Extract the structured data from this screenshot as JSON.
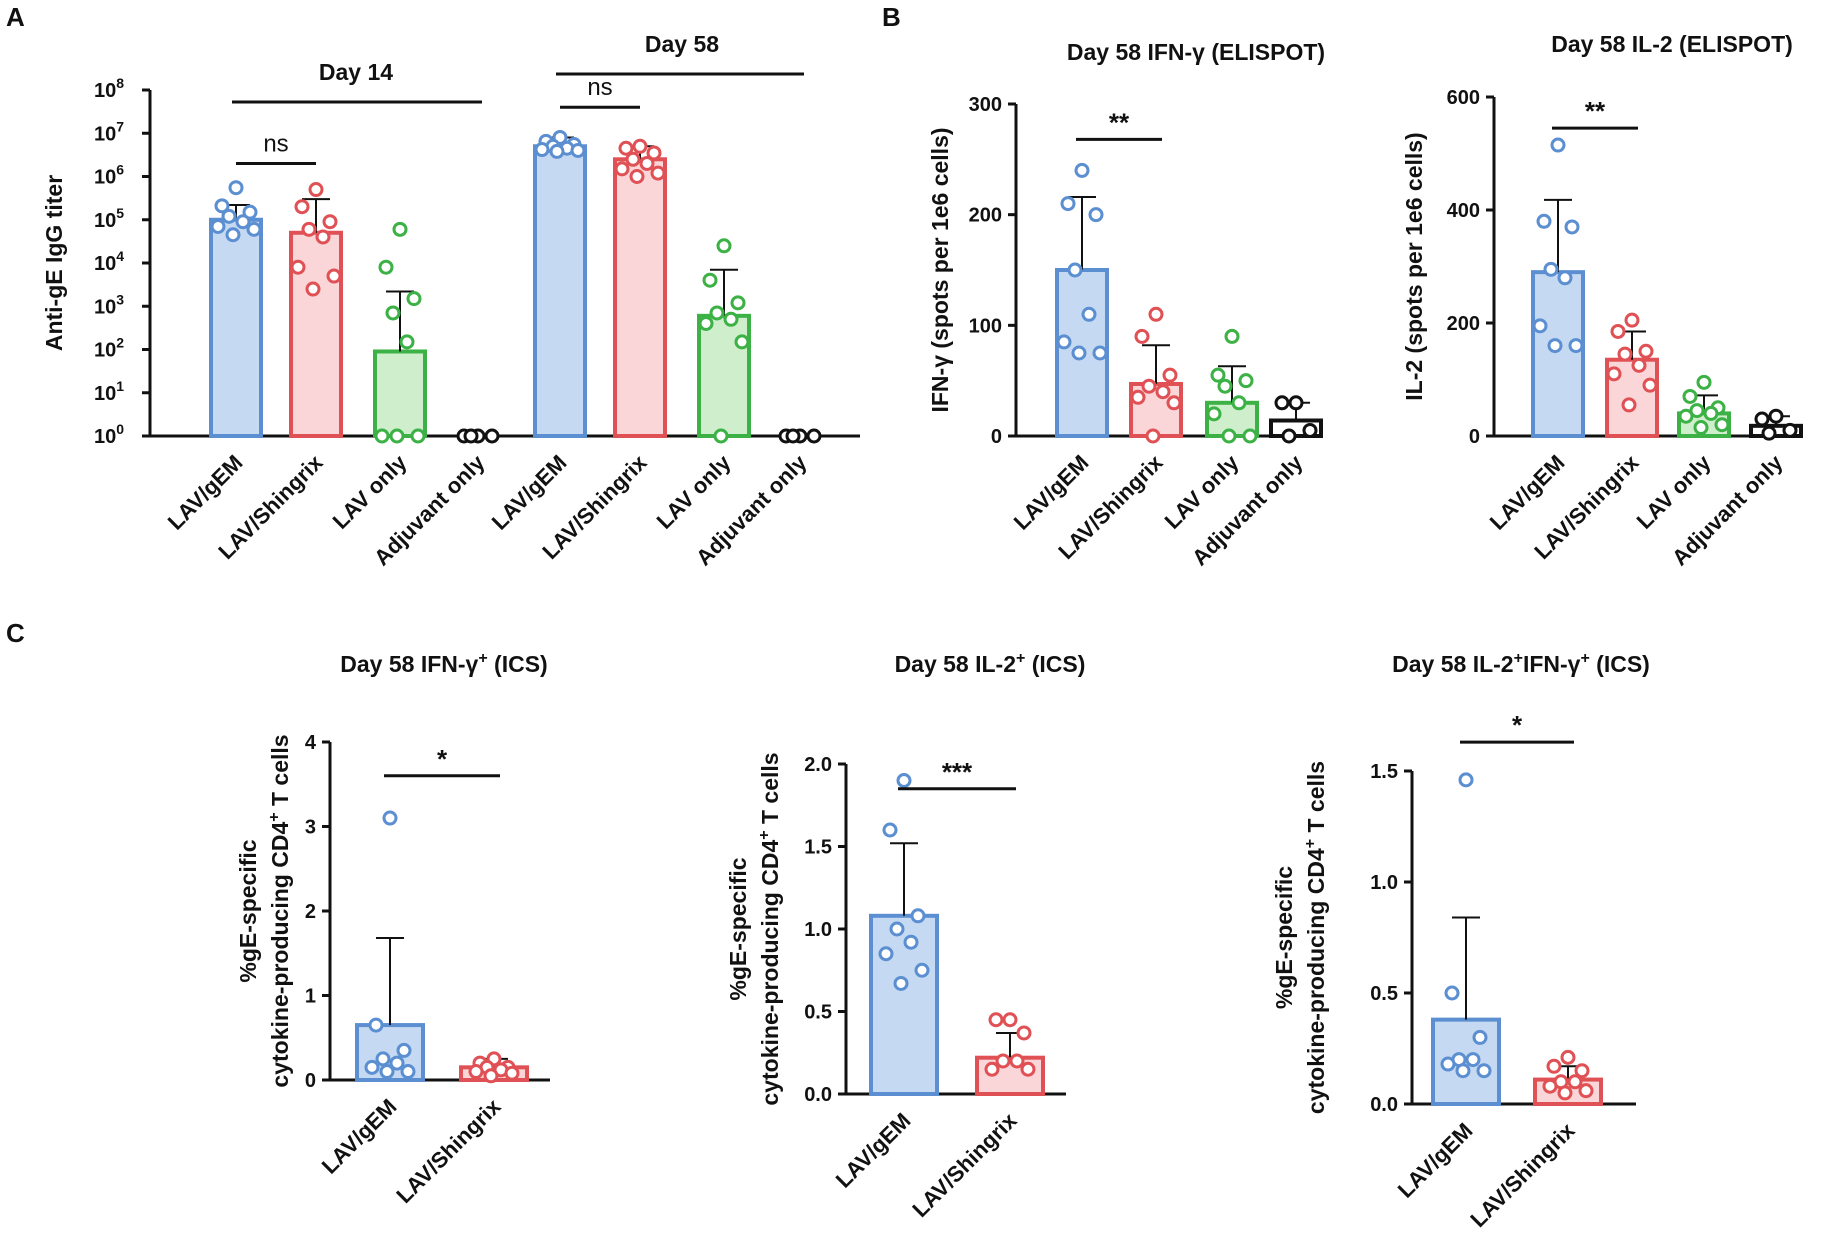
{
  "figure": {
    "panels": [
      {
        "letter": "A"
      },
      {
        "letter": "B"
      },
      {
        "letter": "C"
      }
    ]
  },
  "colors": {
    "LAV/gEM": "#5b8fd1",
    "LAV/Shingrix": "#e05155",
    "LAV only": "#3cb145",
    "Adjuvant only": "#111111",
    "LAV/gEM_fill": "#c5daf2",
    "LAV/Shingrix_fill": "#fbd6d8",
    "LAV only_fill": "#cfeecc",
    "Adjuvant only_fill": "#ffffff"
  },
  "chart_data": [
    {
      "panel": "A",
      "type": "bar",
      "scale": "log10",
      "title": "",
      "ylabel": "Anti-gE IgG titer",
      "ylim": [
        1,
        100000000
      ],
      "yticks_base": "10",
      "yticks_exp": [
        "0",
        "1",
        "2",
        "3",
        "4",
        "5",
        "6",
        "7",
        "8"
      ],
      "groups": [
        {
          "label": "Day 14",
          "categories": [
            "LAV/gEM",
            "LAV/Shingrix",
            "LAV only",
            "Adjuvant only"
          ]
        },
        {
          "label": "Day 58",
          "categories": [
            "LAV/gEM",
            "LAV/Shingrix",
            "LAV only",
            "Adjuvant only"
          ]
        }
      ],
      "bars": [
        {
          "group": 0,
          "category": "LAV/gEM",
          "value": 100000,
          "err": 220000,
          "points": [
            550000,
            210000,
            150000,
            120000,
            90000,
            70000,
            60000,
            45000
          ]
        },
        {
          "group": 0,
          "category": "LAV/Shingrix",
          "value": 50000,
          "err": 300000,
          "points": [
            500000,
            200000,
            90000,
            60000,
            40000,
            8000,
            5000,
            2500
          ]
        },
        {
          "group": 0,
          "category": "LAV only",
          "value": 90,
          "err": 2200,
          "points": [
            60000,
            8000,
            1500,
            700,
            150,
            1,
            1,
            1
          ]
        },
        {
          "group": 0,
          "category": "Adjuvant only",
          "value": 1,
          "err": null,
          "points": [
            1,
            1,
            1,
            1
          ]
        },
        {
          "group": 1,
          "category": "LAV/gEM",
          "value": 5000000,
          "err": 8000000,
          "points": [
            8000000,
            6500000,
            5500000,
            5000000,
            4500000,
            4200000,
            4000000,
            3800000
          ]
        },
        {
          "group": 1,
          "category": "LAV/Shingrix",
          "value": 2500000,
          "err": 5000000,
          "points": [
            5000000,
            4500000,
            3500000,
            2500000,
            2000000,
            1500000,
            1200000,
            1000000
          ]
        },
        {
          "group": 1,
          "category": "LAV only",
          "value": 600,
          "err": 7000,
          "points": [
            25000,
            4000,
            1200,
            700,
            500,
            400,
            150,
            1
          ]
        },
        {
          "group": 1,
          "category": "Adjuvant only",
          "value": 1,
          "err": null,
          "points": [
            1,
            1,
            1,
            1
          ]
        }
      ],
      "annotations": [
        {
          "text": "ns",
          "between": [
            [
              0,
              "LAV/gEM"
            ],
            [
              0,
              "LAV/Shingrix"
            ]
          ],
          "y": 2000000
        },
        {
          "text": "ns",
          "between": [
            [
              1,
              "LAV/gEM"
            ],
            [
              1,
              "LAV/Shingrix"
            ]
          ],
          "y": 40000000
        }
      ]
    },
    {
      "panel": "B",
      "type": "bar",
      "title": "Day 58 IFN-γ (ELISPOT)",
      "ylabel": "IFN-γ (spots per 1e6 cells)",
      "ylim": [
        0,
        300
      ],
      "yticks": [
        "0",
        "100",
        "200",
        "300"
      ],
      "categories": [
        "LAV/gEM",
        "LAV/Shingrix",
        "LAV only",
        "Adjuvant only"
      ],
      "values": [
        150,
        47,
        30,
        14
      ],
      "errors": [
        216,
        82,
        63,
        30
      ],
      "points": [
        [
          240,
          210,
          200,
          150,
          110,
          85,
          75,
          75
        ],
        [
          110,
          90,
          55,
          45,
          40,
          35,
          30,
          0
        ],
        [
          90,
          55,
          50,
          45,
          30,
          20,
          0,
          0
        ],
        [
          30,
          30,
          5,
          0
        ]
      ],
      "annotations": [
        {
          "text": "**",
          "between": [
            0,
            1
          ],
          "y": 268
        }
      ]
    },
    {
      "panel": "B",
      "type": "bar",
      "title": "Day 58 IL-2 (ELISPOT)",
      "ylabel": "IL-2 (spots per 1e6 cells)",
      "ylim": [
        0,
        600
      ],
      "yticks": [
        "0",
        "200",
        "400",
        "600"
      ],
      "categories": [
        "LAV/gEM",
        "LAV/Shingrix",
        "LAV only",
        "Adjuvant only"
      ],
      "values": [
        290,
        135,
        40,
        18
      ],
      "errors": [
        418,
        185,
        72,
        35
      ],
      "points": [
        [
          515,
          380,
          370,
          295,
          280,
          195,
          160,
          160
        ],
        [
          205,
          185,
          150,
          145,
          125,
          110,
          90,
          55
        ],
        [
          95,
          70,
          50,
          45,
          40,
          35,
          20,
          15
        ],
        [
          35,
          30,
          10,
          5
        ]
      ],
      "annotations": [
        {
          "text": "**",
          "between": [
            0,
            1
          ],
          "y": 545
        }
      ]
    },
    {
      "panel": "C",
      "type": "bar",
      "title": "Day 58 IFN-γ",
      "title_sup": "+",
      "title_suffix": " (ICS)",
      "ylabel_line1": "%gE-specific",
      "ylabel_line2": "cytokine-producing CD4",
      "ylabel_sup": "+",
      "ylabel_end": " T cells",
      "ylim": [
        0,
        4
      ],
      "yticks": [
        "0",
        "1",
        "2",
        "3",
        "4"
      ],
      "categories": [
        "LAV/gEM",
        "LAV/Shingrix"
      ],
      "values": [
        0.65,
        0.15
      ],
      "errors": [
        1.68,
        0.25
      ],
      "points": [
        [
          3.1,
          0.65,
          0.35,
          0.25,
          0.2,
          0.15,
          0.1,
          0.1
        ],
        [
          0.25,
          0.2,
          0.15,
          0.15,
          0.12,
          0.1,
          0.08,
          0.05
        ]
      ],
      "annotations": [
        {
          "text": "*",
          "between": [
            0,
            1
          ],
          "y": 3.6
        }
      ]
    },
    {
      "panel": "C",
      "type": "bar",
      "title": "Day 58 IL-2",
      "title_sup": "+",
      "title_suffix": " (ICS)",
      "ylabel_line1": "%gE-specific",
      "ylabel_line2": "cytokine-producing CD4",
      "ylabel_sup": "+",
      "ylabel_end": " T cells",
      "ylim": [
        0,
        2.0
      ],
      "yticks": [
        "0.0",
        "0.5",
        "1.0",
        "1.5",
        "2.0"
      ],
      "categories": [
        "LAV/gEM",
        "LAV/Shingrix"
      ],
      "values": [
        1.08,
        0.22
      ],
      "errors": [
        1.52,
        0.37
      ],
      "points": [
        [
          1.9,
          1.6,
          1.08,
          1.0,
          0.92,
          0.85,
          0.75,
          0.67
        ],
        [
          0.45,
          0.45,
          0.37,
          0.2,
          0.2,
          0.15,
          0.15
        ]
      ],
      "annotations": [
        {
          "text": "***",
          "between": [
            0,
            1
          ],
          "y": 1.85
        }
      ]
    },
    {
      "panel": "C",
      "type": "bar",
      "title": "Day 58 IL-2",
      "title_sup": "+",
      "title_mid": "IFN-γ",
      "title_sup2": "+",
      "title_suffix": " (ICS)",
      "ylabel_line1": "%gE-specific",
      "ylabel_line2": "cytokine-producing CD4",
      "ylabel_sup": "+",
      "ylabel_end": " T cells",
      "ylim": [
        0,
        1.5
      ],
      "yticks": [
        "0.0",
        "0.5",
        "1.0",
        "1.5"
      ],
      "categories": [
        "LAV/gEM",
        "LAV/Shingrix"
      ],
      "values": [
        0.38,
        0.11
      ],
      "errors": [
        0.84,
        0.17
      ],
      "points": [
        [
          1.46,
          0.5,
          0.3,
          0.2,
          0.2,
          0.18,
          0.15,
          0.15
        ],
        [
          0.21,
          0.17,
          0.15,
          0.1,
          0.1,
          0.08,
          0.06,
          0.05
        ]
      ],
      "annotations": [
        {
          "text": "*",
          "between": [
            0,
            1
          ],
          "y": 1.63
        }
      ]
    }
  ]
}
